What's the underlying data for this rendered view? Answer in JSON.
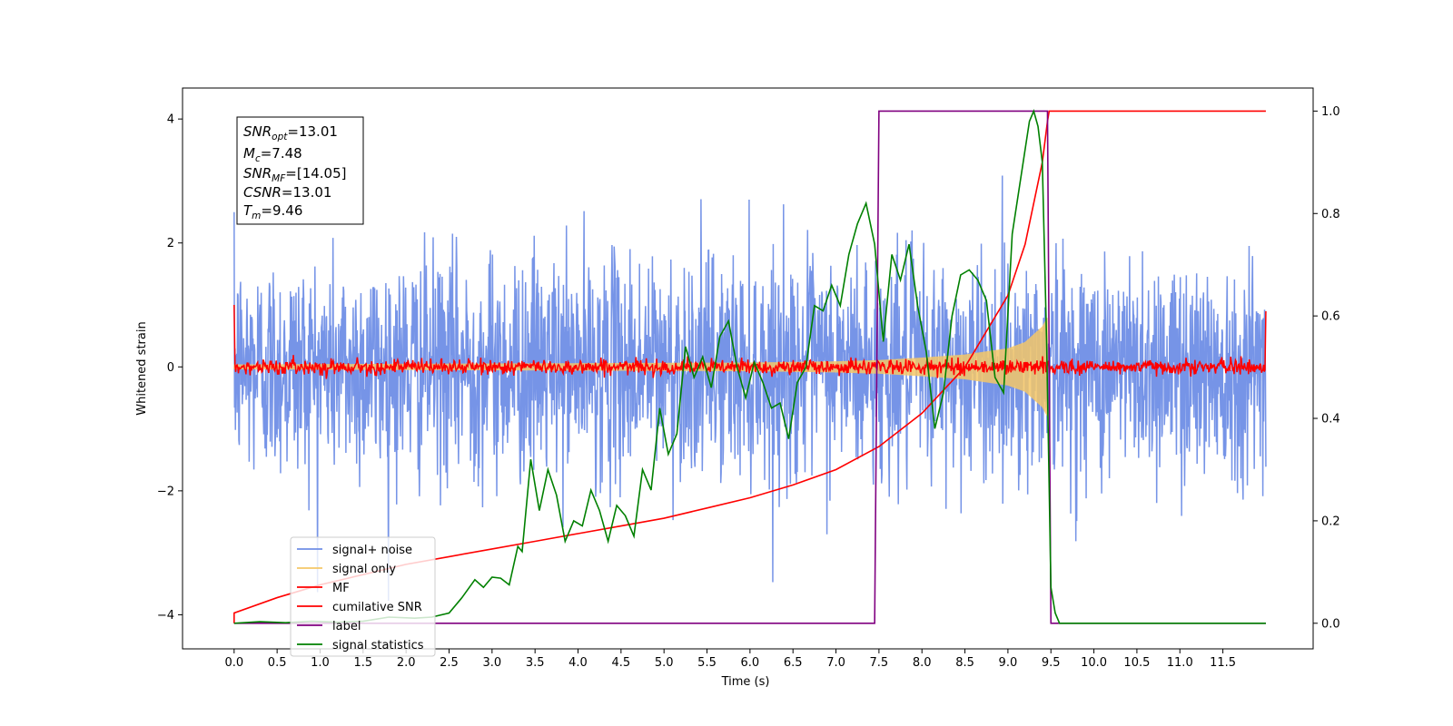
{
  "chart_data": {
    "type": "line",
    "xlabel": "Time (s)",
    "ylabel": "Whitened strain",
    "x_ticks": [
      "0.0",
      "0.5",
      "1.0",
      "1.5",
      "2.0",
      "2.5",
      "3.0",
      "3.5",
      "4.0",
      "4.5",
      "5.0",
      "5.5",
      "6.0",
      "6.5",
      "7.0",
      "7.5",
      "8.0",
      "8.5",
      "9.0",
      "9.5",
      "10.0",
      "10.5",
      "11.0",
      "11.5"
    ],
    "xlim": [
      -0.6,
      12.55
    ],
    "y_left_ticks": [
      "4",
      "2",
      "0",
      "−2",
      "−4"
    ],
    "y_left_lim": [
      -4.55,
      4.5
    ],
    "y_right_ticks": [
      "1.0",
      "0.8",
      "0.6",
      "0.4",
      "0.2",
      "0.0"
    ],
    "y_right_lim": [
      -0.05,
      1.045
    ],
    "grid": false,
    "annotation": {
      "snr_opt_base": "SNR",
      "snr_opt_sub": "opt",
      "snr_opt_value": "=13.01",
      "mc_base": "M",
      "mc_sub": "c",
      "mc_value": "=7.48",
      "snr_mf_base": "SNR",
      "snr_mf_sub": "MF",
      "snr_mf_value": "=[14.05]",
      "csnr_base": "CSNR",
      "csnr_value": "=13.01",
      "tm_base": "T",
      "tm_sub": "m",
      "tm_value": "=9.46"
    },
    "legend_position": "lower-left",
    "series": [
      {
        "name": "signal+ noise",
        "color": "#6f8ee6",
        "axis": "left",
        "description_values": {
          "std": 0.9,
          "x_range": [
            0.0,
            12.0
          ]
        }
      },
      {
        "name": "signal only",
        "color": "#f5c767",
        "axis": "left",
        "envelope": {
          "t": [
            0.0,
            6.0,
            7.0,
            7.5,
            8.0,
            8.5,
            9.0,
            9.2,
            9.4,
            9.46
          ],
          "amp": [
            0.04,
            0.07,
            0.09,
            0.11,
            0.15,
            0.2,
            0.3,
            0.4,
            0.65,
            0.8
          ]
        }
      },
      {
        "name": "MF",
        "color": "#ff0000",
        "axis": "left",
        "description_values": {
          "std": 0.06,
          "edge_value": 1.0
        }
      },
      {
        "name": "cumilative SNR",
        "color": "#ff0000",
        "axis": "right",
        "points": [
          [
            0.0,
            0.0
          ],
          [
            0.0,
            0.02
          ],
          [
            0.5,
            0.05
          ],
          [
            1.0,
            0.075
          ],
          [
            1.5,
            0.095
          ],
          [
            2.0,
            0.115
          ],
          [
            2.5,
            0.13
          ],
          [
            3.0,
            0.145
          ],
          [
            3.5,
            0.16
          ],
          [
            4.0,
            0.175
          ],
          [
            4.5,
            0.19
          ],
          [
            5.0,
            0.205
          ],
          [
            5.5,
            0.225
          ],
          [
            6.0,
            0.245
          ],
          [
            6.5,
            0.27
          ],
          [
            7.0,
            0.3
          ],
          [
            7.5,
            0.345
          ],
          [
            8.0,
            0.41
          ],
          [
            8.5,
            0.5
          ],
          [
            9.0,
            0.64
          ],
          [
            9.2,
            0.74
          ],
          [
            9.4,
            0.9
          ],
          [
            9.46,
            0.98
          ],
          [
            9.48,
            1.0
          ],
          [
            12.0,
            1.0
          ]
        ]
      },
      {
        "name": "label",
        "color": "#800080",
        "axis": "right",
        "points": [
          [
            0.0,
            0.0
          ],
          [
            7.45,
            0.0
          ],
          [
            7.5,
            1.0
          ],
          [
            9.46,
            1.0
          ],
          [
            9.5,
            0.0
          ],
          [
            12.0,
            0.0
          ]
        ]
      },
      {
        "name": "signal statistics",
        "color": "#008000",
        "axis": "right",
        "points": [
          [
            0.0,
            0.0
          ],
          [
            0.3,
            0.003
          ],
          [
            0.6,
            0.001
          ],
          [
            0.9,
            0.004
          ],
          [
            1.2,
            0.002
          ],
          [
            1.5,
            0.004
          ],
          [
            1.8,
            0.012
          ],
          [
            2.1,
            0.01
          ],
          [
            2.3,
            0.012
          ],
          [
            2.5,
            0.02
          ],
          [
            2.65,
            0.05
          ],
          [
            2.8,
            0.085
          ],
          [
            2.9,
            0.07
          ],
          [
            3.0,
            0.09
          ],
          [
            3.1,
            0.088
          ],
          [
            3.2,
            0.075
          ],
          [
            3.3,
            0.15
          ],
          [
            3.35,
            0.14
          ],
          [
            3.45,
            0.32
          ],
          [
            3.55,
            0.22
          ],
          [
            3.65,
            0.3
          ],
          [
            3.75,
            0.25
          ],
          [
            3.85,
            0.16
          ],
          [
            3.95,
            0.2
          ],
          [
            4.05,
            0.19
          ],
          [
            4.15,
            0.26
          ],
          [
            4.25,
            0.22
          ],
          [
            4.35,
            0.16
          ],
          [
            4.45,
            0.23
          ],
          [
            4.55,
            0.21
          ],
          [
            4.65,
            0.17
          ],
          [
            4.75,
            0.3
          ],
          [
            4.85,
            0.26
          ],
          [
            4.95,
            0.42
          ],
          [
            5.05,
            0.33
          ],
          [
            5.15,
            0.37
          ],
          [
            5.25,
            0.54
          ],
          [
            5.35,
            0.48
          ],
          [
            5.45,
            0.52
          ],
          [
            5.55,
            0.46
          ],
          [
            5.65,
            0.56
          ],
          [
            5.75,
            0.59
          ],
          [
            5.85,
            0.5
          ],
          [
            5.95,
            0.44
          ],
          [
            6.05,
            0.51
          ],
          [
            6.15,
            0.47
          ],
          [
            6.25,
            0.42
          ],
          [
            6.35,
            0.43
          ],
          [
            6.45,
            0.36
          ],
          [
            6.55,
            0.47
          ],
          [
            6.65,
            0.5
          ],
          [
            6.75,
            0.62
          ],
          [
            6.85,
            0.61
          ],
          [
            6.95,
            0.66
          ],
          [
            7.05,
            0.62
          ],
          [
            7.15,
            0.72
          ],
          [
            7.25,
            0.78
          ],
          [
            7.35,
            0.82
          ],
          [
            7.45,
            0.74
          ],
          [
            7.55,
            0.55
          ],
          [
            7.65,
            0.72
          ],
          [
            7.75,
            0.67
          ],
          [
            7.85,
            0.74
          ],
          [
            7.95,
            0.62
          ],
          [
            8.05,
            0.53
          ],
          [
            8.15,
            0.38
          ],
          [
            8.25,
            0.45
          ],
          [
            8.35,
            0.6
          ],
          [
            8.45,
            0.68
          ],
          [
            8.55,
            0.69
          ],
          [
            8.65,
            0.67
          ],
          [
            8.75,
            0.63
          ],
          [
            8.85,
            0.48
          ],
          [
            8.95,
            0.45
          ],
          [
            9.05,
            0.76
          ],
          [
            9.15,
            0.87
          ],
          [
            9.25,
            0.98
          ],
          [
            9.3,
            1.0
          ],
          [
            9.35,
            0.97
          ],
          [
            9.4,
            0.9
          ],
          [
            9.45,
            0.55
          ],
          [
            9.5,
            0.07
          ],
          [
            9.55,
            0.02
          ],
          [
            9.6,
            0.0
          ],
          [
            12.0,
            0.0
          ]
        ]
      }
    ]
  }
}
